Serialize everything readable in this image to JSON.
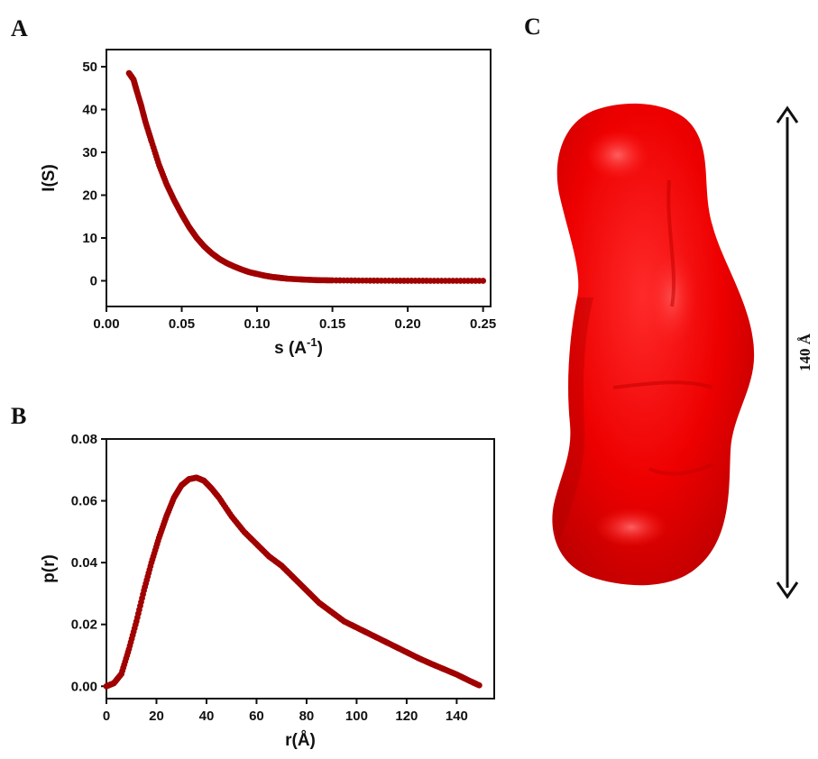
{
  "panels": {
    "a": "A",
    "b": "B",
    "c": "C"
  },
  "colors": {
    "series": "#a00000",
    "volume": "#ee0000",
    "volume_dark": "#c00000",
    "axis": "#111111"
  },
  "chart_data": [
    {
      "type": "scatter",
      "panel": "A",
      "xlabel": "s (A",
      "xlabel_sup": "-1",
      "xlabel_end": ")",
      "ylabel": "I(S)",
      "xlim": [
        0,
        0.255
      ],
      "ylim": [
        -6,
        54
      ],
      "xticks": [
        0.0,
        0.05,
        0.1,
        0.15,
        0.2,
        0.25
      ],
      "xtick_labels": [
        "0.00",
        "0.05",
        "0.10",
        "0.15",
        "0.20",
        "0.25"
      ],
      "yticks": [
        0,
        10,
        20,
        30,
        40,
        50
      ],
      "ytick_labels": [
        "0",
        "10",
        "20",
        "30",
        "40",
        "50"
      ],
      "series": [
        {
          "x": [
            0.015,
            0.018,
            0.02,
            0.023,
            0.026,
            0.03,
            0.035,
            0.04,
            0.045,
            0.05,
            0.055,
            0.06,
            0.065,
            0.07,
            0.075,
            0.08,
            0.085,
            0.09,
            0.095,
            0.1,
            0.105,
            0.11,
            0.115,
            0.12,
            0.13,
            0.14,
            0.15,
            0.17,
            0.19,
            0.21,
            0.23,
            0.25
          ],
          "y": [
            48.5,
            47.0,
            44.5,
            41.0,
            37.0,
            32.5,
            27.0,
            22.5,
            18.8,
            15.5,
            12.5,
            10.0,
            8.0,
            6.4,
            5.1,
            4.1,
            3.3,
            2.6,
            2.0,
            1.6,
            1.2,
            0.9,
            0.7,
            0.5,
            0.3,
            0.15,
            0.1,
            0.05,
            0.02,
            0.01,
            0.0,
            0.0
          ]
        }
      ]
    },
    {
      "type": "scatter",
      "panel": "B",
      "xlabel": "r(Å)",
      "ylabel": "p(r)",
      "xlim": [
        0,
        155
      ],
      "ylim": [
        -0.004,
        0.08
      ],
      "xticks": [
        0,
        20,
        40,
        60,
        80,
        100,
        120,
        140
      ],
      "xtick_labels": [
        "0",
        "20",
        "40",
        "60",
        "80",
        "100",
        "120",
        "140"
      ],
      "yticks": [
        0.0,
        0.02,
        0.04,
        0.06,
        0.08
      ],
      "ytick_labels": [
        "0.00",
        "0.02",
        "0.04",
        "0.06",
        "0.08"
      ],
      "series": [
        {
          "x": [
            0,
            3,
            6,
            9,
            12,
            15,
            18,
            21,
            24,
            27,
            30,
            33,
            36,
            39,
            42,
            45,
            50,
            55,
            60,
            65,
            70,
            75,
            80,
            85,
            90,
            95,
            100,
            105,
            110,
            115,
            120,
            125,
            130,
            135,
            140,
            145,
            149
          ],
          "y": [
            0.0,
            0.001,
            0.004,
            0.012,
            0.021,
            0.031,
            0.04,
            0.048,
            0.055,
            0.061,
            0.065,
            0.067,
            0.0675,
            0.0665,
            0.064,
            0.061,
            0.055,
            0.05,
            0.046,
            0.042,
            0.039,
            0.035,
            0.031,
            0.027,
            0.024,
            0.021,
            0.019,
            0.017,
            0.015,
            0.013,
            0.011,
            0.009,
            0.0072,
            0.0055,
            0.0038,
            0.0018,
            0.0003
          ]
        }
      ]
    }
  ],
  "model": {
    "dimension_label": "140  Å"
  }
}
